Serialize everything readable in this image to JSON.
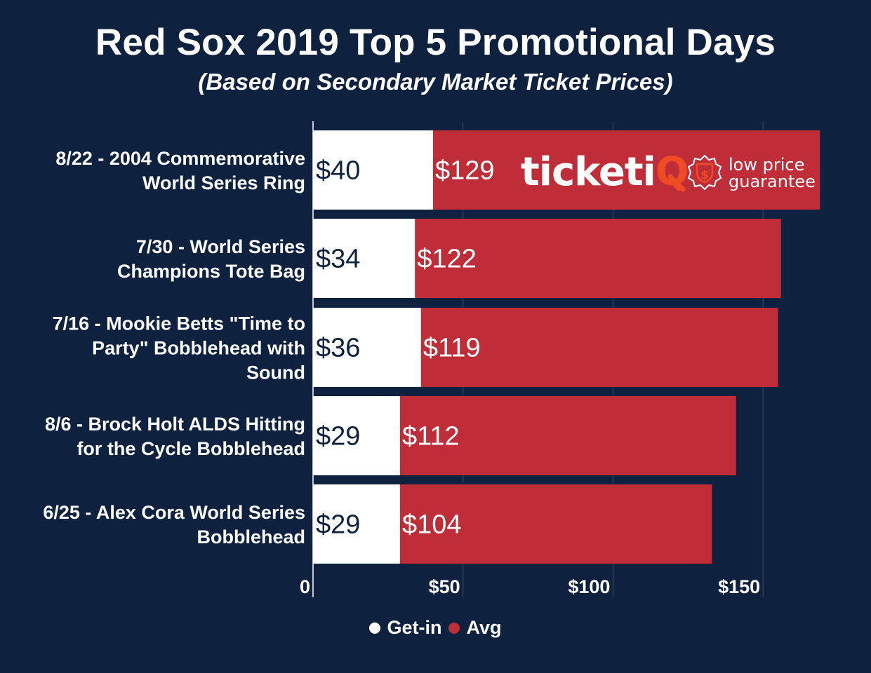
{
  "title": "Red Sox 2019 Top 5 Promotional Days",
  "subtitle": "(Based on Secondary Market Ticket Prices)",
  "colors": {
    "background": "#0e2240",
    "getin": "#ffffff",
    "avg": "#be2d38",
    "text": "#ffffff",
    "getin_label": "#0e2240",
    "grid": "#3c4c66",
    "logo_orange": "#ef4b24"
  },
  "logo": {
    "brand": "ticketiQ",
    "line1": "low price",
    "line2": "guarantee"
  },
  "chart_data": {
    "type": "bar",
    "orientation": "horizontal",
    "title": "Red Sox 2019 Top 5 Promotional Days",
    "subtitle": "(Based on Secondary Market Ticket Prices)",
    "categories": [
      [
        "8/22 - 2004 Commemorative",
        "World Series Ring"
      ],
      [
        "7/30 - World Series",
        "Champions Tote Bag"
      ],
      [
        "7/16 - Mookie Betts \"Time to",
        "Party\" Bobblehead with",
        "Sound"
      ],
      [
        "8/6 - Brock Holt ALDS Hitting",
        "for the Cycle Bobblehead"
      ],
      [
        "6/25 - Alex Cora World Series",
        "Bobblehead"
      ]
    ],
    "series": [
      {
        "name": "Get-in",
        "values": [
          40,
          34,
          36,
          29,
          29
        ],
        "labels": [
          "$40",
          "$34",
          "$36",
          "$29",
          "$29"
        ]
      },
      {
        "name": "Avg",
        "values": [
          129,
          122,
          119,
          112,
          104
        ],
        "labels": [
          "$129",
          "$122",
          "$119",
          "$112",
          "$104"
        ]
      }
    ],
    "xlim": [
      0,
      175
    ],
    "xticks": [
      0,
      50,
      100,
      150
    ],
    "xtick_labels": [
      "0",
      "$50",
      "$100",
      "$150"
    ],
    "xlabel": "",
    "ylabel": "",
    "grid": true,
    "legend": "bottom-center"
  }
}
